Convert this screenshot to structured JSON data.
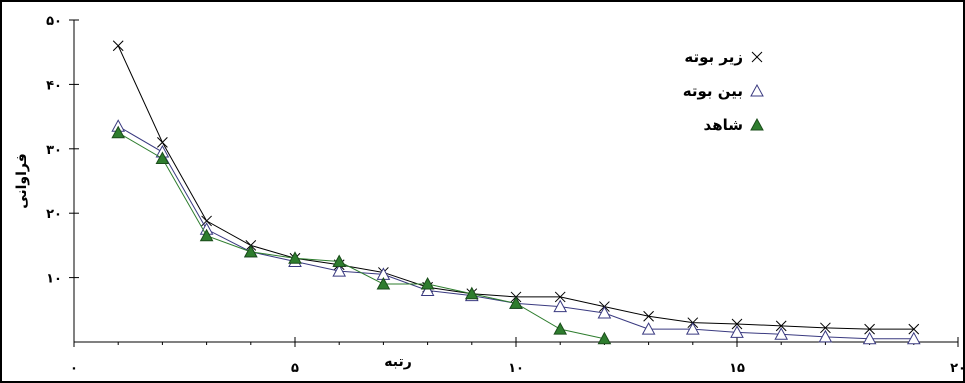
{
  "chart_data": {
    "type": "line",
    "xlabel": "رتبه",
    "ylabel": "فراوانی",
    "xlim": [
      0,
      20
    ],
    "ylim": [
      0,
      50
    ],
    "x_ticks": [
      {
        "value": 0,
        "label": "۰"
      },
      {
        "value": 5,
        "label": "۵"
      },
      {
        "value": 10,
        "label": "۱۰"
      },
      {
        "value": 15,
        "label": "۱۵"
      },
      {
        "value": 20,
        "label": "۲۰"
      }
    ],
    "y_ticks": [
      {
        "value": 10,
        "label": "۱۰"
      },
      {
        "value": 20,
        "label": "۲۰"
      },
      {
        "value": 30,
        "label": "۳۰"
      },
      {
        "value": 40,
        "label": "۴۰"
      },
      {
        "value": 50,
        "label": "۵۰"
      }
    ],
    "legend_position": "top-right",
    "grid": false,
    "series": [
      {
        "name": "زیر بوته",
        "marker": "x",
        "color": "#000000",
        "points": [
          [
            1,
            46
          ],
          [
            2,
            31
          ],
          [
            3,
            18.8
          ],
          [
            4,
            15
          ],
          [
            5,
            13
          ],
          [
            6,
            12
          ],
          [
            7,
            10.8
          ],
          [
            8,
            8.5
          ],
          [
            9,
            7.5
          ],
          [
            10,
            7
          ],
          [
            11,
            7
          ],
          [
            12,
            5.5
          ],
          [
            13,
            4
          ],
          [
            14,
            3
          ],
          [
            15,
            2.8
          ],
          [
            16,
            2.5
          ],
          [
            17,
            2.2
          ],
          [
            18,
            2
          ],
          [
            19,
            2
          ]
        ]
      },
      {
        "name": "بین بوته",
        "marker": "triangle-open",
        "color": "#3a3a80",
        "points": [
          [
            1,
            33.5
          ],
          [
            2,
            29.5
          ],
          [
            3,
            17.5
          ],
          [
            4,
            14
          ],
          [
            5,
            12.5
          ],
          [
            6,
            11
          ],
          [
            7,
            10.5
          ],
          [
            8,
            8
          ],
          [
            9,
            7.2
          ],
          [
            10,
            6
          ],
          [
            11,
            5.5
          ],
          [
            12,
            4.5
          ],
          [
            13,
            2
          ],
          [
            14,
            2
          ],
          [
            15,
            1.5
          ],
          [
            16,
            1.2
          ],
          [
            17,
            0.8
          ],
          [
            18,
            0.5
          ],
          [
            19,
            0.5
          ]
        ]
      },
      {
        "name": "شاهد",
        "marker": "triangle-filled",
        "color": "#2e7d2e",
        "points": [
          [
            1,
            32.5
          ],
          [
            2,
            28.5
          ],
          [
            3,
            16.5
          ],
          [
            4,
            14
          ],
          [
            5,
            13
          ],
          [
            6,
            12.5
          ],
          [
            7,
            9
          ],
          [
            8,
            9
          ],
          [
            9,
            7.5
          ],
          [
            10,
            6
          ],
          [
            11,
            2
          ],
          [
            12,
            0.5
          ]
        ]
      }
    ]
  }
}
